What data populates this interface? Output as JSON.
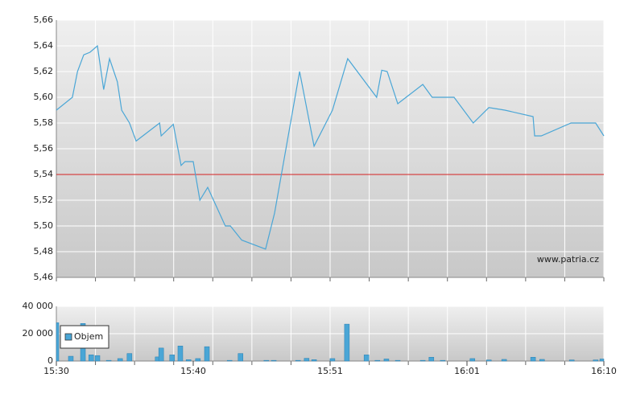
{
  "chart_data": [
    {
      "type": "line",
      "xlim": [
        0,
        14
      ],
      "xgrid": [
        0,
        1,
        2,
        3,
        4,
        5,
        6,
        7,
        8,
        9,
        10,
        11,
        12,
        13,
        14
      ],
      "ylim": [
        5.46,
        5.66
      ],
      "yticks": [
        {
          "value": 5.46,
          "label": "5,46"
        },
        {
          "value": 5.48,
          "label": "5,48"
        },
        {
          "value": 5.5,
          "label": "5,50"
        },
        {
          "value": 5.52,
          "label": "5,52"
        },
        {
          "value": 5.54,
          "label": "5,54"
        },
        {
          "value": 5.56,
          "label": "5,56"
        },
        {
          "value": 5.58,
          "label": "5,58"
        },
        {
          "value": 5.6,
          "label": "5,60"
        },
        {
          "value": 5.62,
          "label": "5,62"
        },
        {
          "value": 5.64,
          "label": "5,64"
        },
        {
          "value": 5.66,
          "label": "5,66"
        }
      ],
      "grid": true,
      "hline": 5.54,
      "hline_color": "#d42020",
      "annotation": "www.patria.cz",
      "x": [
        0,
        0.41,
        0.54,
        0.7,
        0.86,
        1.05,
        1.21,
        1.36,
        1.56,
        1.67,
        1.87,
        2.04,
        2.64,
        2.68,
        2.99,
        3.19,
        3.29,
        3.5,
        3.67,
        3.87,
        4.32,
        4.45,
        4.74,
        5.35,
        5.58,
        6.22,
        6.59,
        7.06,
        7.45,
        8.19,
        8.32,
        8.46,
        8.73,
        9.37,
        9.61,
        10.17,
        10.66,
        11.06,
        11.47,
        12.19,
        12.23,
        12.4,
        13.16,
        13.79,
        14
      ],
      "series": [
        {
          "color": "#4aa6d6",
          "values": [
            5.59,
            5.6,
            5.62,
            5.633,
            5.635,
            5.64,
            5.606,
            5.63,
            5.612,
            5.59,
            5.58,
            5.566,
            5.58,
            5.57,
            5.579,
            5.547,
            5.55,
            5.55,
            5.52,
            5.53,
            5.5,
            5.5,
            5.489,
            5.482,
            5.51,
            5.62,
            5.562,
            5.59,
            5.63,
            5.6,
            5.621,
            5.62,
            5.595,
            5.61,
            5.6,
            5.6,
            5.58,
            5.592,
            5.59,
            5.585,
            5.57,
            5.57,
            5.58,
            5.58,
            5.57
          ]
        }
      ]
    },
    {
      "type": "bar",
      "xlim": [
        0,
        14
      ],
      "xgrid": [
        0,
        1,
        2,
        3,
        4,
        5,
        6,
        7,
        8,
        9,
        10,
        11,
        12,
        13,
        14
      ],
      "xticks": [
        {
          "value": 0,
          "label": "15:30"
        },
        {
          "value": 3.5,
          "label": "15:40"
        },
        {
          "value": 7,
          "label": "15:51"
        },
        {
          "value": 10.5,
          "label": "16:01"
        },
        {
          "value": 14,
          "label": "16:10"
        }
      ],
      "ylim": [
        0,
        40000
      ],
      "yticks": [
        0,
        {
          "value": 20000,
          "label": "20 000"
        },
        {
          "value": 40000,
          "label": "40 000"
        }
      ],
      "grid": true,
      "legend": "upper left",
      "x": [
        0,
        0.37,
        0.68,
        0.89,
        1.05,
        1.34,
        1.63,
        1.87,
        2.59,
        2.68,
        2.96,
        3.17,
        3.38,
        3.62,
        3.85,
        4.43,
        4.71,
        5.37,
        5.56,
        6.18,
        6.4,
        6.59,
        7.06,
        7.43,
        7.93,
        8.21,
        8.44,
        8.73,
        9.37,
        9.59,
        9.88,
        10.64,
        11.06,
        11.45,
        12.19,
        12.42,
        13.18,
        13.79,
        13.96
      ],
      "series": [
        {
          "name": "Objem",
          "color": "#4aa6d6",
          "values": [
            28000,
            3500,
            27500,
            4500,
            4000,
            500,
            1800,
            5500,
            3000,
            9500,
            4500,
            11000,
            1000,
            1800,
            10500,
            500,
            5500,
            500,
            500,
            500,
            2000,
            1000,
            1800,
            27000,
            4500,
            500,
            1500,
            500,
            500,
            2800,
            500,
            1800,
            800,
            1200,
            2800,
            1200,
            800,
            800,
            1500
          ]
        }
      ]
    }
  ]
}
